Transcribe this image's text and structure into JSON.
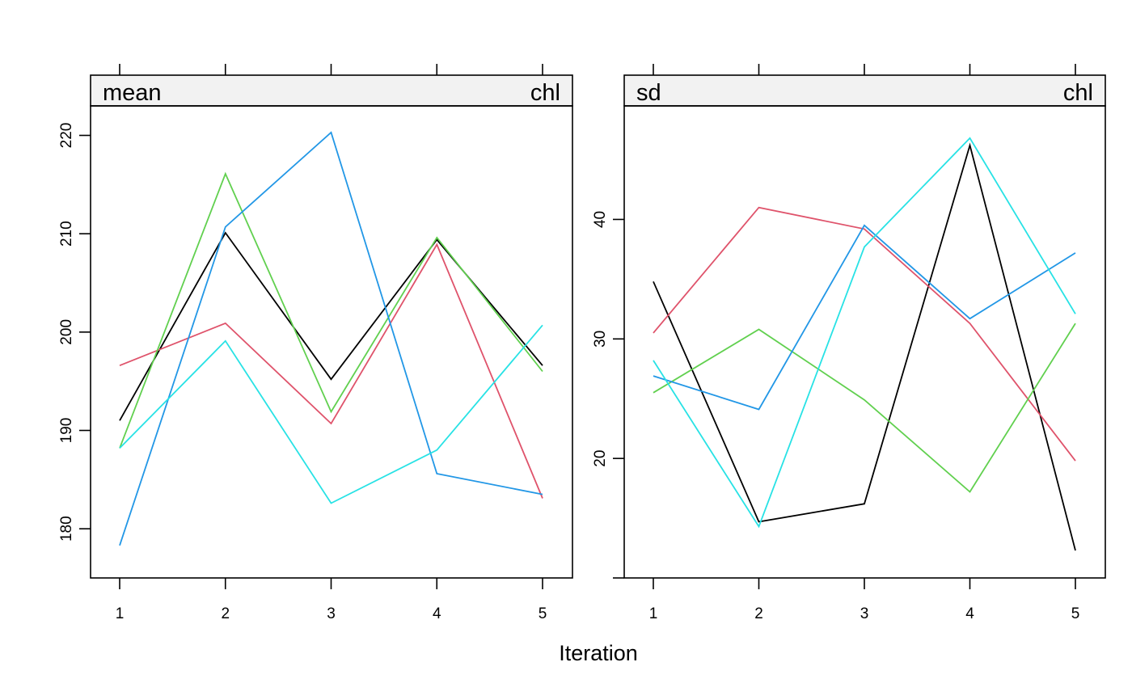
{
  "chart_data": {
    "type": "line",
    "xlabel": "Iteration",
    "x": [
      1,
      2,
      3,
      4,
      5
    ],
    "panels": [
      {
        "strip_left": "mean",
        "strip_right": "chl",
        "ylim": [
          175,
          223
        ],
        "yticks": [
          180,
          190,
          200,
          210,
          220
        ],
        "series": [
          {
            "color": "#000000",
            "values": [
              191.0,
              210.1,
              195.2,
              209.4,
              196.6
            ]
          },
          {
            "color": "#DF536B",
            "values": [
              196.6,
              200.9,
              190.7,
              208.9,
              183.1
            ]
          },
          {
            "color": "#61D04F",
            "values": [
              188.2,
              216.1,
              191.9,
              209.6,
              196.0
            ]
          },
          {
            "color": "#2297E6",
            "values": [
              178.3,
              210.7,
              220.3,
              185.6,
              183.5
            ]
          },
          {
            "color": "#28E2E5",
            "values": [
              188.2,
              199.1,
              182.6,
              188.0,
              200.7
            ]
          }
        ]
      },
      {
        "strip_left": "sd",
        "strip_right": "chl",
        "ylim": [
          10,
          49.5
        ],
        "yticks": [
          10,
          20,
          30,
          40
        ],
        "ytick_labels": [
          "",
          "20",
          "30",
          "40"
        ],
        "series": [
          {
            "color": "#000000",
            "values": [
              34.8,
              14.7,
              16.2,
              46.2,
              12.3
            ]
          },
          {
            "color": "#DF536B",
            "values": [
              30.5,
              41.0,
              39.2,
              31.3,
              19.8
            ]
          },
          {
            "color": "#61D04F",
            "values": [
              25.5,
              30.8,
              24.9,
              17.2,
              31.3
            ]
          },
          {
            "color": "#2297E6",
            "values": [
              26.9,
              24.1,
              39.5,
              31.7,
              37.2
            ]
          },
          {
            "color": "#28E2E5",
            "values": [
              28.2,
              14.3,
              37.7,
              46.8,
              32.1
            ]
          }
        ]
      }
    ]
  }
}
